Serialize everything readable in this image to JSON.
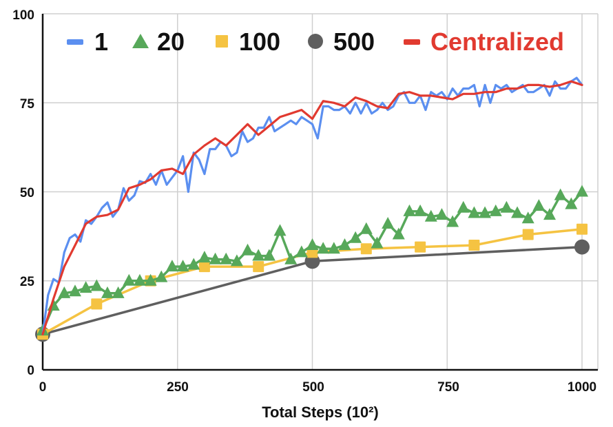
{
  "chart_data": {
    "type": "line",
    "xlabel": "Total Steps (10²)",
    "ylabel": "",
    "xlim": [
      0,
      1000
    ],
    "ylim": [
      0,
      100
    ],
    "xticks": [
      "0",
      "250",
      "500",
      "750",
      "1000"
    ],
    "yticks": [
      "0",
      "25",
      "50",
      "75",
      "100"
    ],
    "grid": true,
    "legend_position": "top",
    "series": [
      {
        "name": "1",
        "color": "#5b8ff0",
        "marker": "none",
        "x": [
          0,
          10,
          20,
          30,
          40,
          50,
          60,
          70,
          80,
          90,
          100,
          110,
          120,
          130,
          140,
          150,
          160,
          170,
          180,
          190,
          200,
          210,
          220,
          230,
          240,
          250,
          260,
          270,
          280,
          290,
          300,
          310,
          320,
          330,
          340,
          350,
          360,
          370,
          380,
          390,
          400,
          410,
          420,
          430,
          440,
          450,
          460,
          470,
          480,
          490,
          500,
          510,
          520,
          530,
          540,
          550,
          560,
          570,
          580,
          590,
          600,
          610,
          620,
          630,
          640,
          650,
          660,
          670,
          680,
          690,
          700,
          710,
          720,
          730,
          740,
          750,
          760,
          770,
          780,
          790,
          800,
          810,
          820,
          830,
          840,
          850,
          860,
          870,
          880,
          890,
          900,
          910,
          920,
          930,
          940,
          950,
          960,
          970,
          980,
          990,
          1000
        ],
        "values": [
          10,
          21,
          25.5,
          24.5,
          33,
          37,
          38,
          36,
          42,
          41,
          43,
          45.5,
          47,
          43,
          45,
          51,
          47.5,
          49,
          53,
          52.5,
          55,
          52,
          56,
          52,
          54,
          56,
          60,
          50,
          61,
          59,
          55,
          62,
          62,
          64,
          63,
          60,
          61,
          67,
          64,
          65,
          68,
          68,
          71,
          67,
          68,
          69,
          70,
          69,
          71,
          70,
          69,
          65,
          74,
          74,
          73,
          73,
          74,
          72,
          75,
          72,
          75,
          72,
          73,
          75,
          73,
          74,
          77,
          78,
          75,
          75,
          77,
          73,
          78,
          77,
          78,
          76,
          79,
          77,
          79,
          79,
          80,
          74,
          80,
          75,
          80,
          79,
          80,
          78,
          79,
          80,
          78,
          78,
          79,
          80,
          77,
          81,
          79,
          79,
          81,
          82,
          80
        ]
      },
      {
        "name": "20",
        "color": "#57a85a",
        "marker": "triangle",
        "x": [
          0,
          20,
          40,
          60,
          80,
          100,
          120,
          140,
          160,
          180,
          200,
          220,
          240,
          260,
          280,
          300,
          320,
          340,
          360,
          380,
          400,
          420,
          440,
          460,
          480,
          500,
          520,
          540,
          560,
          580,
          600,
          620,
          640,
          660,
          680,
          700,
          720,
          740,
          760,
          780,
          800,
          820,
          840,
          860,
          880,
          900,
          920,
          940,
          960,
          980,
          1000
        ],
        "values": [
          11,
          18,
          21.5,
          22,
          23,
          23.5,
          21.5,
          21.5,
          25,
          25,
          25,
          26,
          29,
          29,
          29.5,
          31.5,
          31,
          31,
          30.5,
          33.5,
          32,
          32,
          39,
          31,
          33,
          35,
          34,
          34,
          35,
          37,
          39.5,
          35.5,
          41,
          38,
          44.5,
          44.5,
          43,
          43.5,
          41.5,
          45.5,
          44,
          44,
          44.5,
          45.5,
          44,
          42.5,
          46,
          43.5,
          49,
          46.5,
          50
        ]
      },
      {
        "name": "100",
        "color": "#f5c342",
        "marker": "square",
        "x": [
          0,
          100,
          200,
          300,
          400,
          500,
          600,
          700,
          800,
          900,
          1000
        ],
        "values": [
          10,
          18.5,
          25,
          29,
          29,
          33,
          34,
          34.5,
          35,
          38,
          39.5
        ]
      },
      {
        "name": "500",
        "color": "#5f5f5f",
        "marker": "circle",
        "x": [
          0,
          500,
          1000
        ],
        "values": [
          10,
          30.5,
          34.5
        ]
      },
      {
        "name": "Centralized",
        "color": "#e13a30",
        "marker": "none",
        "x": [
          0,
          20,
          40,
          60,
          80,
          100,
          120,
          140,
          160,
          180,
          200,
          220,
          240,
          260,
          280,
          300,
          320,
          340,
          360,
          380,
          400,
          420,
          440,
          460,
          480,
          500,
          520,
          540,
          560,
          580,
          600,
          620,
          640,
          660,
          680,
          700,
          720,
          740,
          760,
          780,
          800,
          820,
          840,
          860,
          880,
          900,
          920,
          940,
          960,
          980,
          1000
        ],
        "values": [
          10,
          20,
          29,
          35,
          41,
          43,
          43.5,
          45,
          51,
          52,
          53.5,
          56,
          56.5,
          55,
          60.5,
          63,
          65,
          63,
          66,
          69,
          66,
          68.5,
          71,
          72,
          73,
          70.5,
          75.5,
          75,
          74,
          76.5,
          75.5,
          74,
          73.5,
          77.5,
          78,
          77,
          77,
          76.5,
          76,
          77.5,
          77.5,
          78,
          78,
          79,
          79,
          80,
          80,
          79.5,
          80,
          81,
          80
        ]
      }
    ]
  }
}
